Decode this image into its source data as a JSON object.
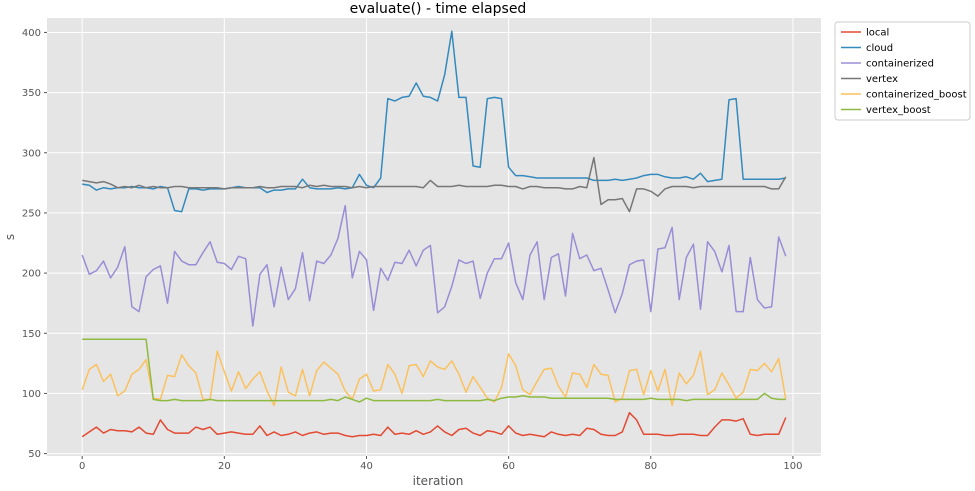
{
  "chart_data": {
    "type": "line",
    "title": "evaluate() - time elapsed",
    "xlabel": "iteration",
    "ylabel": "s",
    "xlim": [
      -4.95,
      103.95
    ],
    "ylim": [
      48,
      412
    ],
    "x_ticks": [
      0,
      20,
      40,
      60,
      80,
      100
    ],
    "y_ticks": [
      50,
      100,
      150,
      200,
      250,
      300,
      350,
      400
    ],
    "grid": true,
    "legend_position": "upper-right-outside",
    "series": [
      {
        "name": "local",
        "color": "#E24A33",
        "values": [
          64,
          68,
          72,
          67,
          70,
          69,
          69,
          68,
          72,
          67,
          66,
          78,
          70,
          67,
          67,
          67,
          72,
          70,
          72,
          66,
          67,
          68,
          67,
          66,
          66,
          73,
          65,
          68,
          65,
          66,
          68,
          65,
          67,
          68,
          66,
          67,
          67,
          65,
          64,
          65,
          65,
          66,
          65,
          72,
          66,
          67,
          66,
          69,
          66,
          68,
          73,
          68,
          65,
          70,
          71,
          67,
          65,
          69,
          68,
          66,
          73,
          67,
          65,
          66,
          65,
          64,
          68,
          66,
          65,
          66,
          65,
          71,
          70,
          66,
          65,
          65,
          68,
          84,
          78,
          66,
          66,
          66,
          65,
          65,
          66,
          66,
          66,
          65,
          65,
          72,
          78,
          78,
          77,
          79,
          66,
          65,
          66,
          66,
          66,
          80
        ]
      },
      {
        "name": "cloud",
        "color": "#348ABD",
        "values": [
          274,
          273,
          269,
          271,
          270,
          271,
          271,
          272,
          271,
          271,
          270,
          272,
          271,
          252,
          251,
          270,
          270,
          269,
          270,
          270,
          270,
          271,
          272,
          271,
          271,
          271,
          267,
          269,
          269,
          270,
          270,
          278,
          271,
          270,
          270,
          270,
          271,
          270,
          271,
          282,
          273,
          271,
          279,
          345,
          343,
          346,
          347,
          358,
          347,
          346,
          343,
          365,
          401,
          346,
          346,
          289,
          288,
          345,
          346,
          345,
          288,
          281,
          281,
          280,
          279,
          279,
          279,
          279,
          279,
          279,
          279,
          279,
          277,
          277,
          277,
          278,
          277,
          278,
          279,
          281,
          282,
          282,
          280,
          279,
          279,
          280,
          278,
          283,
          276,
          277,
          278,
          344,
          345,
          278,
          278,
          278,
          278,
          278,
          278,
          279
        ]
      },
      {
        "name": "containerized",
        "color": "#988ED5",
        "values": [
          215,
          199,
          202,
          210,
          196,
          205,
          222,
          172,
          168,
          197,
          203,
          206,
          175,
          218,
          210,
          207,
          207,
          217,
          226,
          209,
          208,
          203,
          214,
          212,
          156,
          199,
          207,
          172,
          205,
          178,
          187,
          217,
          177,
          210,
          208,
          215,
          229,
          256,
          196,
          218,
          211,
          169,
          204,
          194,
          209,
          208,
          219,
          206,
          219,
          223,
          167,
          172,
          189,
          211,
          208,
          210,
          179,
          200,
          212,
          212,
          225,
          192,
          178,
          215,
          226,
          178,
          213,
          216,
          181,
          233,
          212,
          215,
          202,
          204,
          186,
          167,
          183,
          207,
          210,
          211,
          168,
          220,
          221,
          238,
          178,
          213,
          224,
          170,
          226,
          218,
          201,
          223,
          168,
          168,
          213,
          178,
          171,
          172,
          230,
          214
        ]
      },
      {
        "name": "vertex",
        "color": "#777777",
        "values": [
          277,
          276,
          275,
          276,
          274,
          271,
          272,
          271,
          273,
          271,
          272,
          271,
          271,
          272,
          272,
          271,
          271,
          271,
          271,
          271,
          270,
          271,
          271,
          271,
          271,
          272,
          271,
          271,
          272,
          272,
          272,
          271,
          273,
          272,
          273,
          272,
          272,
          272,
          271,
          272,
          271,
          272,
          272,
          272,
          272,
          272,
          272,
          272,
          271,
          277,
          272,
          272,
          272,
          273,
          272,
          272,
          272,
          272,
          273,
          273,
          272,
          272,
          270,
          272,
          272,
          271,
          271,
          271,
          270,
          270,
          272,
          271,
          296,
          257,
          261,
          261,
          262,
          251,
          270,
          270,
          268,
          264,
          270,
          272,
          272,
          272,
          271,
          272,
          272,
          272,
          272,
          272,
          272,
          272,
          272,
          272,
          272,
          270,
          270,
          280
        ]
      },
      {
        "name": "containerized_boost",
        "color": "#FBC15E",
        "values": [
          103,
          120,
          124,
          110,
          116,
          98,
          102,
          116,
          120,
          128,
          96,
          95,
          115,
          114,
          132,
          123,
          117,
          95,
          95,
          135,
          118,
          102,
          118,
          104,
          112,
          118,
          102,
          90,
          122,
          101,
          98,
          120,
          98,
          119,
          126,
          121,
          116,
          102,
          95,
          112,
          116,
          102,
          103,
          124,
          116,
          100,
          123,
          124,
          114,
          127,
          122,
          120,
          127,
          116,
          101,
          114,
          105,
          96,
          93,
          105,
          133,
          123,
          103,
          99,
          110,
          120,
          121,
          106,
          97,
          117,
          116,
          105,
          124,
          116,
          115,
          93,
          96,
          119,
          120,
          99,
          119,
          102,
          120,
          90,
          117,
          108,
          115,
          135,
          99,
          103,
          117,
          107,
          96,
          101,
          120,
          119,
          125,
          118,
          129,
          95
        ]
      },
      {
        "name": "vertex_boost",
        "color": "#8EBA42",
        "values": [
          145,
          145,
          145,
          145,
          145,
          145,
          145,
          145,
          145,
          145,
          95,
          94,
          94,
          95,
          94,
          94,
          94,
          94,
          95,
          94,
          94,
          94,
          94,
          94,
          94,
          94,
          94,
          94,
          94,
          94,
          94,
          94,
          94,
          94,
          94,
          95,
          94,
          97,
          95,
          93,
          96,
          94,
          94,
          94,
          94,
          94,
          94,
          94,
          94,
          94,
          95,
          94,
          94,
          94,
          94,
          94,
          94,
          95,
          94,
          96,
          97,
          97,
          98,
          97,
          97,
          97,
          96,
          96,
          96,
          96,
          96,
          96,
          96,
          96,
          96,
          95,
          95,
          95,
          95,
          95,
          96,
          95,
          95,
          95,
          95,
          94,
          95,
          95,
          95,
          95,
          95,
          95,
          95,
          95,
          95,
          95,
          100,
          96,
          95,
          95
        ]
      }
    ]
  }
}
